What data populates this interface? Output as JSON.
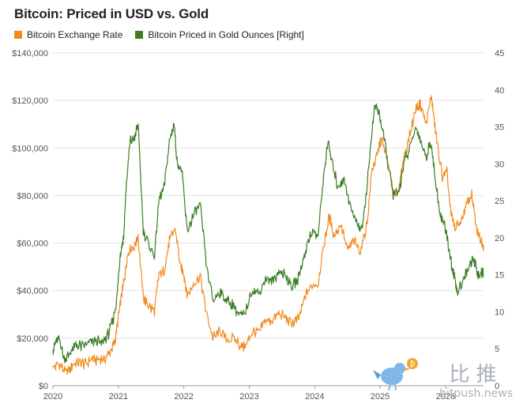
{
  "header": {
    "title": "Bitcoin: Priced in USD vs. Gold"
  },
  "legend": [
    {
      "label": "Bitcoin Exchange Rate",
      "color": "#f28a1d"
    },
    {
      "label": "Bitcoin Priced in Gold Ounces [Right]",
      "color": "#3a7d24"
    }
  ],
  "watermark": {
    "cn": "比推",
    "url": "bitpush.news"
  },
  "chart_data": {
    "type": "line",
    "title": "Bitcoin: Priced in USD vs. Gold",
    "x_ticks": [
      "2020",
      "2021",
      "2022",
      "2023",
      "2024",
      "2025",
      "2026"
    ],
    "y_left": {
      "ticks": [
        "$0",
        "$20,000",
        "$40,000",
        "$60,000",
        "$80,000",
        "$100,000",
        "$120,000",
        "$140,000"
      ],
      "lim": [
        0,
        140000
      ]
    },
    "y_right": {
      "ticks": [
        "0",
        "5",
        "10",
        "15",
        "20",
        "25",
        "30",
        "35",
        "40",
        "45"
      ],
      "lim": [
        0,
        45
      ]
    },
    "x_range": [
      2020.0,
      2026.58
    ],
    "grid": "horizontal",
    "series": [
      {
        "name": "Bitcoin Exchange Rate",
        "color": "#f28a1d",
        "axis": "left",
        "points": [
          [
            2020.0,
            7200
          ],
          [
            2020.1,
            9500
          ],
          [
            2020.2,
            5000
          ],
          [
            2020.3,
            8800
          ],
          [
            2020.4,
            9500
          ],
          [
            2020.5,
            9200
          ],
          [
            2020.6,
            11500
          ],
          [
            2020.7,
            10800
          ],
          [
            2020.8,
            11600
          ],
          [
            2020.9,
            15500
          ],
          [
            2020.95,
            19000
          ],
          [
            2021.0,
            29000
          ],
          [
            2021.05,
            38000
          ],
          [
            2021.1,
            47000
          ],
          [
            2021.15,
            57000
          ],
          [
            2021.25,
            59000
          ],
          [
            2021.3,
            63000
          ],
          [
            2021.38,
            37000
          ],
          [
            2021.45,
            34000
          ],
          [
            2021.55,
            31000
          ],
          [
            2021.62,
            47000
          ],
          [
            2021.7,
            48000
          ],
          [
            2021.78,
            61000
          ],
          [
            2021.87,
            66000
          ],
          [
            2021.95,
            50000
          ],
          [
            2022.0,
            47000
          ],
          [
            2022.05,
            38000
          ],
          [
            2022.15,
            43000
          ],
          [
            2022.25,
            46000
          ],
          [
            2022.35,
            30000
          ],
          [
            2022.45,
            20000
          ],
          [
            2022.55,
            23000
          ],
          [
            2022.65,
            20000
          ],
          [
            2022.78,
            19500
          ],
          [
            2022.88,
            16500
          ],
          [
            2022.95,
            16800
          ],
          [
            2023.05,
            23000
          ],
          [
            2023.15,
            22000
          ],
          [
            2023.25,
            28000
          ],
          [
            2023.35,
            27000
          ],
          [
            2023.45,
            30000
          ],
          [
            2023.55,
            29000
          ],
          [
            2023.65,
            26000
          ],
          [
            2023.75,
            28000
          ],
          [
            2023.85,
            37000
          ],
          [
            2023.95,
            42000
          ],
          [
            2024.05,
            43000
          ],
          [
            2024.15,
            61000
          ],
          [
            2024.22,
            71000
          ],
          [
            2024.3,
            63000
          ],
          [
            2024.4,
            68000
          ],
          [
            2024.5,
            57000
          ],
          [
            2024.6,
            61000
          ],
          [
            2024.7,
            57000
          ],
          [
            2024.8,
            68000
          ],
          [
            2024.87,
            90000
          ],
          [
            2024.95,
            97000
          ],
          [
            2025.02,
            104000
          ],
          [
            2025.1,
            96000
          ],
          [
            2025.18,
            84000
          ],
          [
            2025.28,
            80000
          ],
          [
            2025.35,
            95000
          ],
          [
            2025.45,
            105000
          ],
          [
            2025.55,
            117000
          ],
          [
            2025.62,
            118000
          ],
          [
            2025.7,
            110000
          ],
          [
            2025.78,
            122000
          ],
          [
            2025.82,
            113000
          ],
          [
            2025.88,
            100000
          ],
          [
            2025.95,
            88000
          ],
          [
            2026.02,
            90000
          ],
          [
            2026.08,
            72000
          ],
          [
            2026.15,
            66000
          ],
          [
            2026.25,
            70000
          ],
          [
            2026.33,
            77000
          ],
          [
            2026.4,
            80000
          ],
          [
            2026.47,
            66000
          ],
          [
            2026.53,
            62000
          ],
          [
            2026.58,
            59000
          ]
        ]
      },
      {
        "name": "Bitcoin Priced in Gold Ounces [Right]",
        "color": "#3a7d24",
        "axis": "right",
        "points": [
          [
            2020.0,
            4.8
          ],
          [
            2020.05,
            6.0
          ],
          [
            2020.1,
            6.3
          ],
          [
            2020.18,
            3.5
          ],
          [
            2020.25,
            4.2
          ],
          [
            2020.35,
            5.5
          ],
          [
            2020.45,
            5.3
          ],
          [
            2020.55,
            5.8
          ],
          [
            2020.65,
            6.1
          ],
          [
            2020.75,
            5.7
          ],
          [
            2020.85,
            7.0
          ],
          [
            2020.92,
            9.0
          ],
          [
            2020.98,
            12.0
          ],
          [
            2021.03,
            18.0
          ],
          [
            2021.08,
            20.0
          ],
          [
            2021.12,
            27.0
          ],
          [
            2021.18,
            33.0
          ],
          [
            2021.25,
            33.5
          ],
          [
            2021.3,
            35.5
          ],
          [
            2021.38,
            21.0
          ],
          [
            2021.45,
            19.5
          ],
          [
            2021.55,
            17.5
          ],
          [
            2021.62,
            25.0
          ],
          [
            2021.7,
            27.0
          ],
          [
            2021.78,
            33.0
          ],
          [
            2021.85,
            35.5
          ],
          [
            2021.9,
            30.0
          ],
          [
            2021.97,
            29.0
          ],
          [
            2022.05,
            21.0
          ],
          [
            2022.15,
            23.0
          ],
          [
            2022.25,
            24.5
          ],
          [
            2022.35,
            16.0
          ],
          [
            2022.45,
            11.5
          ],
          [
            2022.55,
            12.7
          ],
          [
            2022.65,
            11.5
          ],
          [
            2022.75,
            11.0
          ],
          [
            2022.85,
            9.5
          ],
          [
            2022.92,
            9.5
          ],
          [
            2023.05,
            13.0
          ],
          [
            2023.15,
            12.5
          ],
          [
            2023.25,
            14.5
          ],
          [
            2023.35,
            14.0
          ],
          [
            2023.45,
            15.5
          ],
          [
            2023.55,
            15.0
          ],
          [
            2023.65,
            13.5
          ],
          [
            2023.75,
            14.5
          ],
          [
            2023.85,
            18.0
          ],
          [
            2023.95,
            21.0
          ],
          [
            2024.05,
            20.0
          ],
          [
            2024.12,
            27.0
          ],
          [
            2024.2,
            33.0
          ],
          [
            2024.27,
            30.0
          ],
          [
            2024.35,
            27.0
          ],
          [
            2024.45,
            28.0
          ],
          [
            2024.55,
            24.0
          ],
          [
            2024.65,
            22.0
          ],
          [
            2024.72,
            21.0
          ],
          [
            2024.8,
            27.0
          ],
          [
            2024.87,
            34.0
          ],
          [
            2024.92,
            38.0
          ],
          [
            2024.98,
            37.0
          ],
          [
            2025.05,
            34.0
          ],
          [
            2025.12,
            30.0
          ],
          [
            2025.2,
            26.0
          ],
          [
            2025.28,
            26.0
          ],
          [
            2025.36,
            30.0
          ],
          [
            2025.45,
            32.0
          ],
          [
            2025.55,
            35.0
          ],
          [
            2025.62,
            33.0
          ],
          [
            2025.7,
            31.0
          ],
          [
            2025.78,
            33.0
          ],
          [
            2025.85,
            27.0
          ],
          [
            2025.92,
            23.0
          ],
          [
            2025.98,
            22.0
          ],
          [
            2026.05,
            18.5
          ],
          [
            2026.12,
            15.0
          ],
          [
            2026.18,
            12.5
          ],
          [
            2026.25,
            14.0
          ],
          [
            2026.32,
            15.5
          ],
          [
            2026.4,
            17.0
          ],
          [
            2026.46,
            16.5
          ],
          [
            2026.5,
            14.5
          ],
          [
            2026.55,
            15.5
          ],
          [
            2026.58,
            14.8
          ]
        ]
      }
    ]
  }
}
